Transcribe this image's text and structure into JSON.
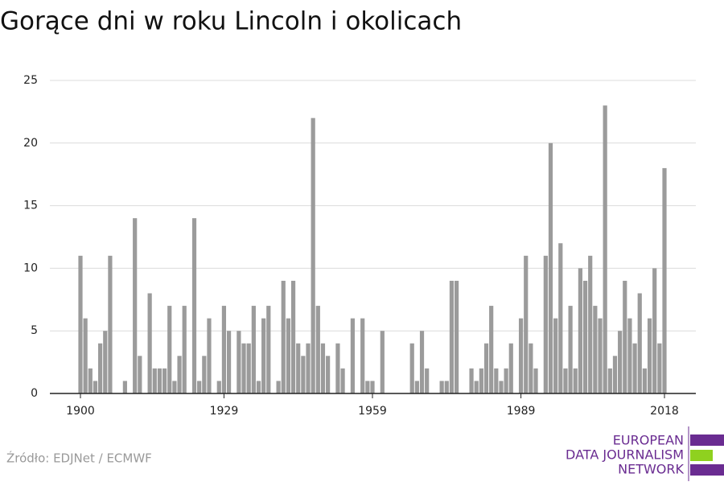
{
  "chart_data": {
    "type": "bar",
    "title": "Gorące dni w roku Lincoln i okolicach",
    "source": "Źródło: EDJNet / ECMWF",
    "logo": [
      "EUROPEAN",
      "DATA JOURNALISM",
      "NETWORK"
    ],
    "color": "#9b9b9b",
    "categories": [
      "1900",
      null,
      null,
      null,
      null,
      null,
      null,
      null,
      null,
      null,
      null,
      null,
      null,
      null,
      null,
      null,
      null,
      null,
      null,
      null,
      null,
      null,
      null,
      null,
      null,
      null,
      null,
      null,
      null,
      "1929",
      null,
      null,
      null,
      null,
      null,
      null,
      null,
      null,
      null,
      null,
      null,
      null,
      null,
      null,
      null,
      null,
      null,
      null,
      null,
      null,
      null,
      null,
      null,
      null,
      null,
      null,
      null,
      null,
      null,
      "1959",
      null,
      null,
      null,
      null,
      null,
      null,
      null,
      null,
      null,
      null,
      null,
      null,
      null,
      null,
      null,
      null,
      null,
      null,
      null,
      null,
      null,
      null,
      null,
      null,
      null,
      null,
      null,
      null,
      null,
      "1989",
      null,
      null,
      null,
      null,
      null,
      null,
      null,
      null,
      null,
      null,
      null,
      null,
      null,
      null,
      null,
      null,
      null,
      null,
      null,
      null,
      null,
      null,
      null,
      null,
      null,
      null,
      null,
      null,
      "2018"
    ],
    "values": [
      11,
      6,
      2,
      1,
      4,
      5,
      11,
      0,
      0,
      1,
      0,
      14,
      3,
      0,
      8,
      2,
      2,
      2,
      7,
      1,
      3,
      7,
      0,
      14,
      1,
      3,
      6,
      0,
      1,
      7,
      5,
      0,
      5,
      4,
      4,
      7,
      1,
      6,
      7,
      0,
      1,
      9,
      6,
      9,
      4,
      3,
      4,
      22,
      7,
      4,
      3,
      0,
      4,
      2,
      0,
      6,
      0,
      6,
      1,
      1,
      0,
      5,
      0,
      0,
      0,
      0,
      0,
      4,
      1,
      5,
      2,
      0,
      0,
      1,
      1,
      9,
      9,
      0,
      0,
      2,
      1,
      2,
      4,
      7,
      2,
      1,
      2,
      4,
      0,
      6,
      11,
      4,
      2,
      0,
      11,
      20,
      6,
      12,
      2,
      7,
      2,
      10,
      9,
      11,
      7,
      6,
      23,
      2,
      3,
      5,
      9,
      6,
      4,
      8,
      2,
      6,
      10,
      4,
      18
    ],
    "ylim": [
      0,
      25
    ],
    "yticks": [
      0,
      5,
      10,
      15,
      20,
      25
    ],
    "grid": true
  }
}
